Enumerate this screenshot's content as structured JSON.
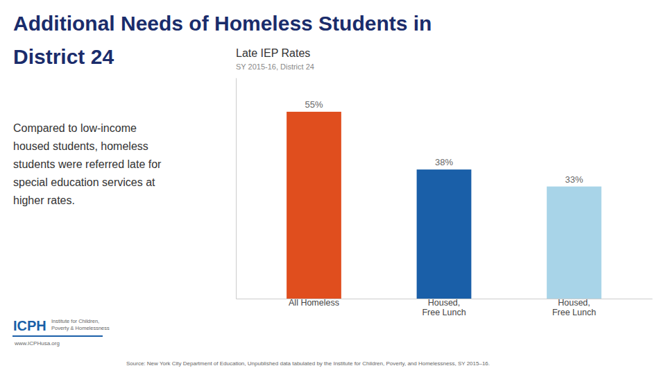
{
  "chart_data": {
    "type": "bar",
    "title": "Late IEP Rates",
    "subtitle": "SY 2015-16, District 24",
    "annotations": [
      "Additional Needs of Homeless Students in",
      "District 24",
      "Compared to low-income\nhoused students, homeless\nstudents were referred late for\nspecial education services at\nhigher rates.",
      "Source: New York City Department of Education, Unpublished data tabulated by the Institute for Children, Poverty, and Homelessness, SY 2015–16.",
      "ICPH",
      "Institute for Children,\nPoverty & Homelessness",
      "www.ICPHusa.org"
    ],
    "categories": [
      "All Homeless",
      "Housed,\nFree Lunch",
      "Housed,\nFree Lunch"
    ],
    "values": [
      55,
      38,
      33
    ],
    "value_labels": [
      "55%",
      "38%",
      "33%"
    ],
    "colors": [
      "#e04e1e",
      "#1a5fa8",
      "#a8d4e8"
    ],
    "data_labels": true,
    "ylim": [
      0,
      65
    ],
    "grid": false,
    "tick_labels": "x"
  }
}
